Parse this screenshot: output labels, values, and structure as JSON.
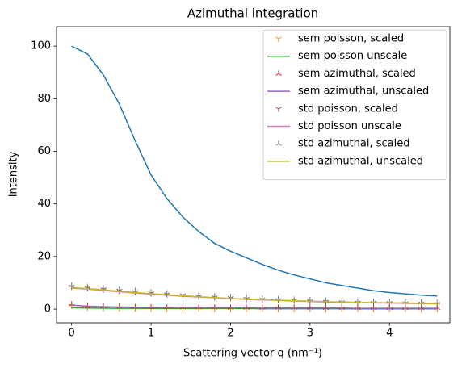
{
  "chart_data": {
    "type": "line",
    "title": "Azimuthal integration",
    "x_label": "Scattering vector q (nm⁻¹)",
    "y_label": "Intensity",
    "x": [
      0,
      0.2,
      0.4,
      0.6,
      0.8,
      1.0,
      1.2,
      1.4,
      1.6,
      1.8,
      2.0,
      2.2,
      2.4,
      2.6,
      2.8,
      3.0,
      3.2,
      3.4,
      3.6,
      3.8,
      4.0,
      4.2,
      4.4,
      4.6
    ],
    "xlim": [
      -0.19,
      4.76
    ],
    "xticks": [
      0,
      1,
      2,
      3,
      4
    ],
    "ylim": [
      -5.2,
      107.4
    ],
    "yticks": [
      0,
      20,
      40,
      60,
      80,
      100
    ],
    "legend": "upper right",
    "series": [
      {
        "color": "#1f77b4",
        "values": [
          100,
          97,
          89,
          78,
          64,
          51,
          42,
          35,
          29.5,
          25,
          22,
          19.5,
          17,
          14.8,
          13,
          11.5,
          10,
          9,
          8,
          7,
          6.3,
          5.8,
          5.3,
          5
        ]
      },
      {
        "name": "sem poisson, scaled",
        "color": "#ff7f0e",
        "marker": "tri_down",
        "values": [
          1.2,
          0.6,
          0.4,
          0.3,
          0.3,
          0.2,
          0.2,
          0.2,
          0.2,
          0.1,
          0.1,
          0.1,
          0.1,
          0.1,
          0.1,
          0.1,
          0.1,
          0.1,
          0.1,
          0.1,
          0.1,
          0.1,
          0.1,
          0.1
        ]
      },
      {
        "name": "sem poisson unscale",
        "color": "#2ca02c",
        "values": [
          0.5,
          0.4,
          0.35,
          0.3,
          0.3,
          0.25,
          0.25,
          0.2,
          0.2,
          0.2,
          0.2,
          0.2,
          0.15,
          0.15,
          0.15,
          0.15,
          0.15,
          0.15,
          0.1,
          0.1,
          0.1,
          0.1,
          0.1,
          0.1
        ]
      },
      {
        "name": "sem azimuthal, scaled",
        "color": "#d62728",
        "marker": "tri_up",
        "values": [
          1.8,
          1.2,
          1.0,
          0.9,
          0.8,
          0.7,
          0.7,
          0.6,
          0.6,
          0.6,
          0.5,
          0.5,
          0.5,
          0.5,
          0.5,
          0.5,
          0.4,
          0.4,
          0.4,
          0.4,
          0.4,
          0.4,
          0.4,
          0.4
        ]
      },
      {
        "name": "sem azimuthal, unscaled",
        "color": "#9467bd",
        "values": [
          1.5,
          1.1,
          0.9,
          0.8,
          0.7,
          0.7,
          0.6,
          0.6,
          0.5,
          0.5,
          0.5,
          0.5,
          0.4,
          0.4,
          0.4,
          0.4,
          0.4,
          0.4,
          0.3,
          0.3,
          0.3,
          0.3,
          0.3,
          0.3
        ]
      },
      {
        "name": "std poisson, scaled",
        "color": "#8c564b",
        "marker": "tri_down",
        "values": [
          8.5,
          8,
          7.5,
          7,
          6.5,
          6,
          5.6,
          5.2,
          4.8,
          4.5,
          4.2,
          3.9,
          3.6,
          3.4,
          3.2,
          3.0,
          2.8,
          2.6,
          2.5,
          2.4,
          2.3,
          2.2,
          2.1,
          2.0
        ]
      },
      {
        "name": "std poisson unscale",
        "color": "#e377c2",
        "values": [
          8,
          7.6,
          7.1,
          6.6,
          6.1,
          5.7,
          5.3,
          4.9,
          4.6,
          4.3,
          4.0,
          3.7,
          3.5,
          3.3,
          3.1,
          2.9,
          2.7,
          2.6,
          2.5,
          2.4,
          2.3,
          2.2,
          2.1,
          2.0
        ]
      },
      {
        "name": "std azimuthal, scaled",
        "color": "#7f7f7f",
        "marker": "tri_up",
        "values": [
          9,
          8.4,
          7.9,
          7.4,
          6.9,
          6.4,
          6,
          5.6,
          5.2,
          4.9,
          4.6,
          4.3,
          4.0,
          3.8,
          3.6,
          3.4,
          3.2,
          3.0,
          2.9,
          2.8,
          2.7,
          2.6,
          2.5,
          2.4
        ]
      },
      {
        "name": "std azimuthal, unscaled",
        "color": "#bcbd22",
        "values": [
          8.2,
          7.8,
          7.3,
          6.8,
          6.3,
          5.9,
          5.5,
          5.1,
          4.7,
          4.4,
          4.1,
          3.8,
          3.6,
          3.4,
          3.2,
          3.0,
          2.8,
          2.7,
          2.6,
          2.5,
          2.4,
          2.3,
          2.2,
          2.1
        ]
      }
    ]
  }
}
